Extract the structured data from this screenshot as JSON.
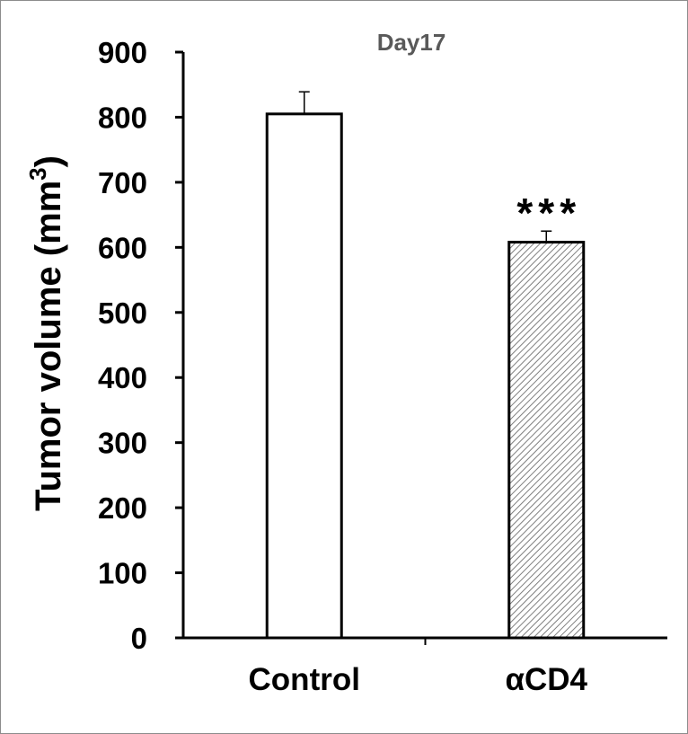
{
  "chart_data": {
    "type": "bar",
    "title": "Day17",
    "xlabel": "",
    "ylabel": "Tumor volume (mm",
    "ylabel_superscript": "3",
    "ylabel_close": ")",
    "categories": [
      "Control",
      "αCD4"
    ],
    "values": [
      805,
      608
    ],
    "errors": [
      34,
      17
    ],
    "fills": [
      "solid-white",
      "hatched-gray"
    ],
    "annotations": [
      "",
      "***"
    ],
    "ylim": [
      0,
      900
    ],
    "yticks": [
      "0",
      "100",
      "200",
      "300",
      "400",
      "500",
      "600",
      "700",
      "800",
      "900"
    ],
    "grid": false,
    "legend": "none"
  },
  "colors": {
    "bar_stroke": "#000000",
    "bar_fill": "#ffffff",
    "hatch": "#7f7f7f",
    "title": "#595959",
    "border": "#8c8c8c"
  }
}
